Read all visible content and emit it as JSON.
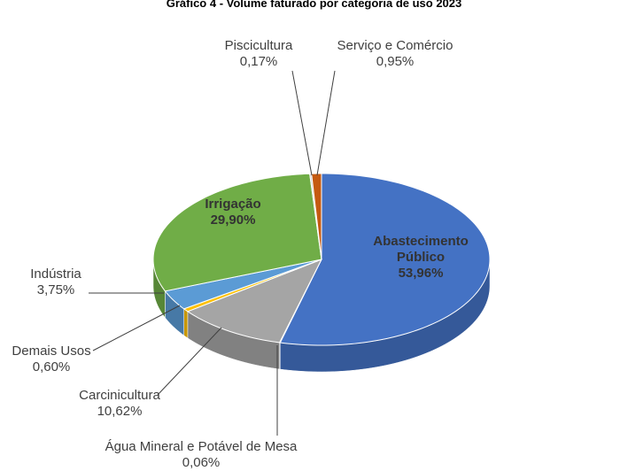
{
  "chart_data": {
    "type": "pie3d",
    "title": "Gráfico 4 - Volume faturado por categoria de uso 2023",
    "categories": [
      "Abastecimento Público",
      "Água Mineral e Potável de Mesa",
      "Carcinicultura",
      "Demais Usos",
      "Indústria",
      "Irrigação",
      "Piscicultura",
      "Serviço e Comércio"
    ],
    "values": [
      53.96,
      0.06,
      10.62,
      0.6,
      3.75,
      29.9,
      0.17,
      0.95
    ],
    "value_labels": [
      "53,96%",
      "0,06%",
      "10,62%",
      "0,60%",
      "3,75%",
      "29,90%",
      "0,17%",
      "0,95%"
    ],
    "colors": [
      "#4472c4",
      "#264478",
      "#a5a5a5",
      "#ffc000",
      "#5b9bd5",
      "#70ad47",
      "#c9c9c9",
      "#c55a11"
    ]
  }
}
